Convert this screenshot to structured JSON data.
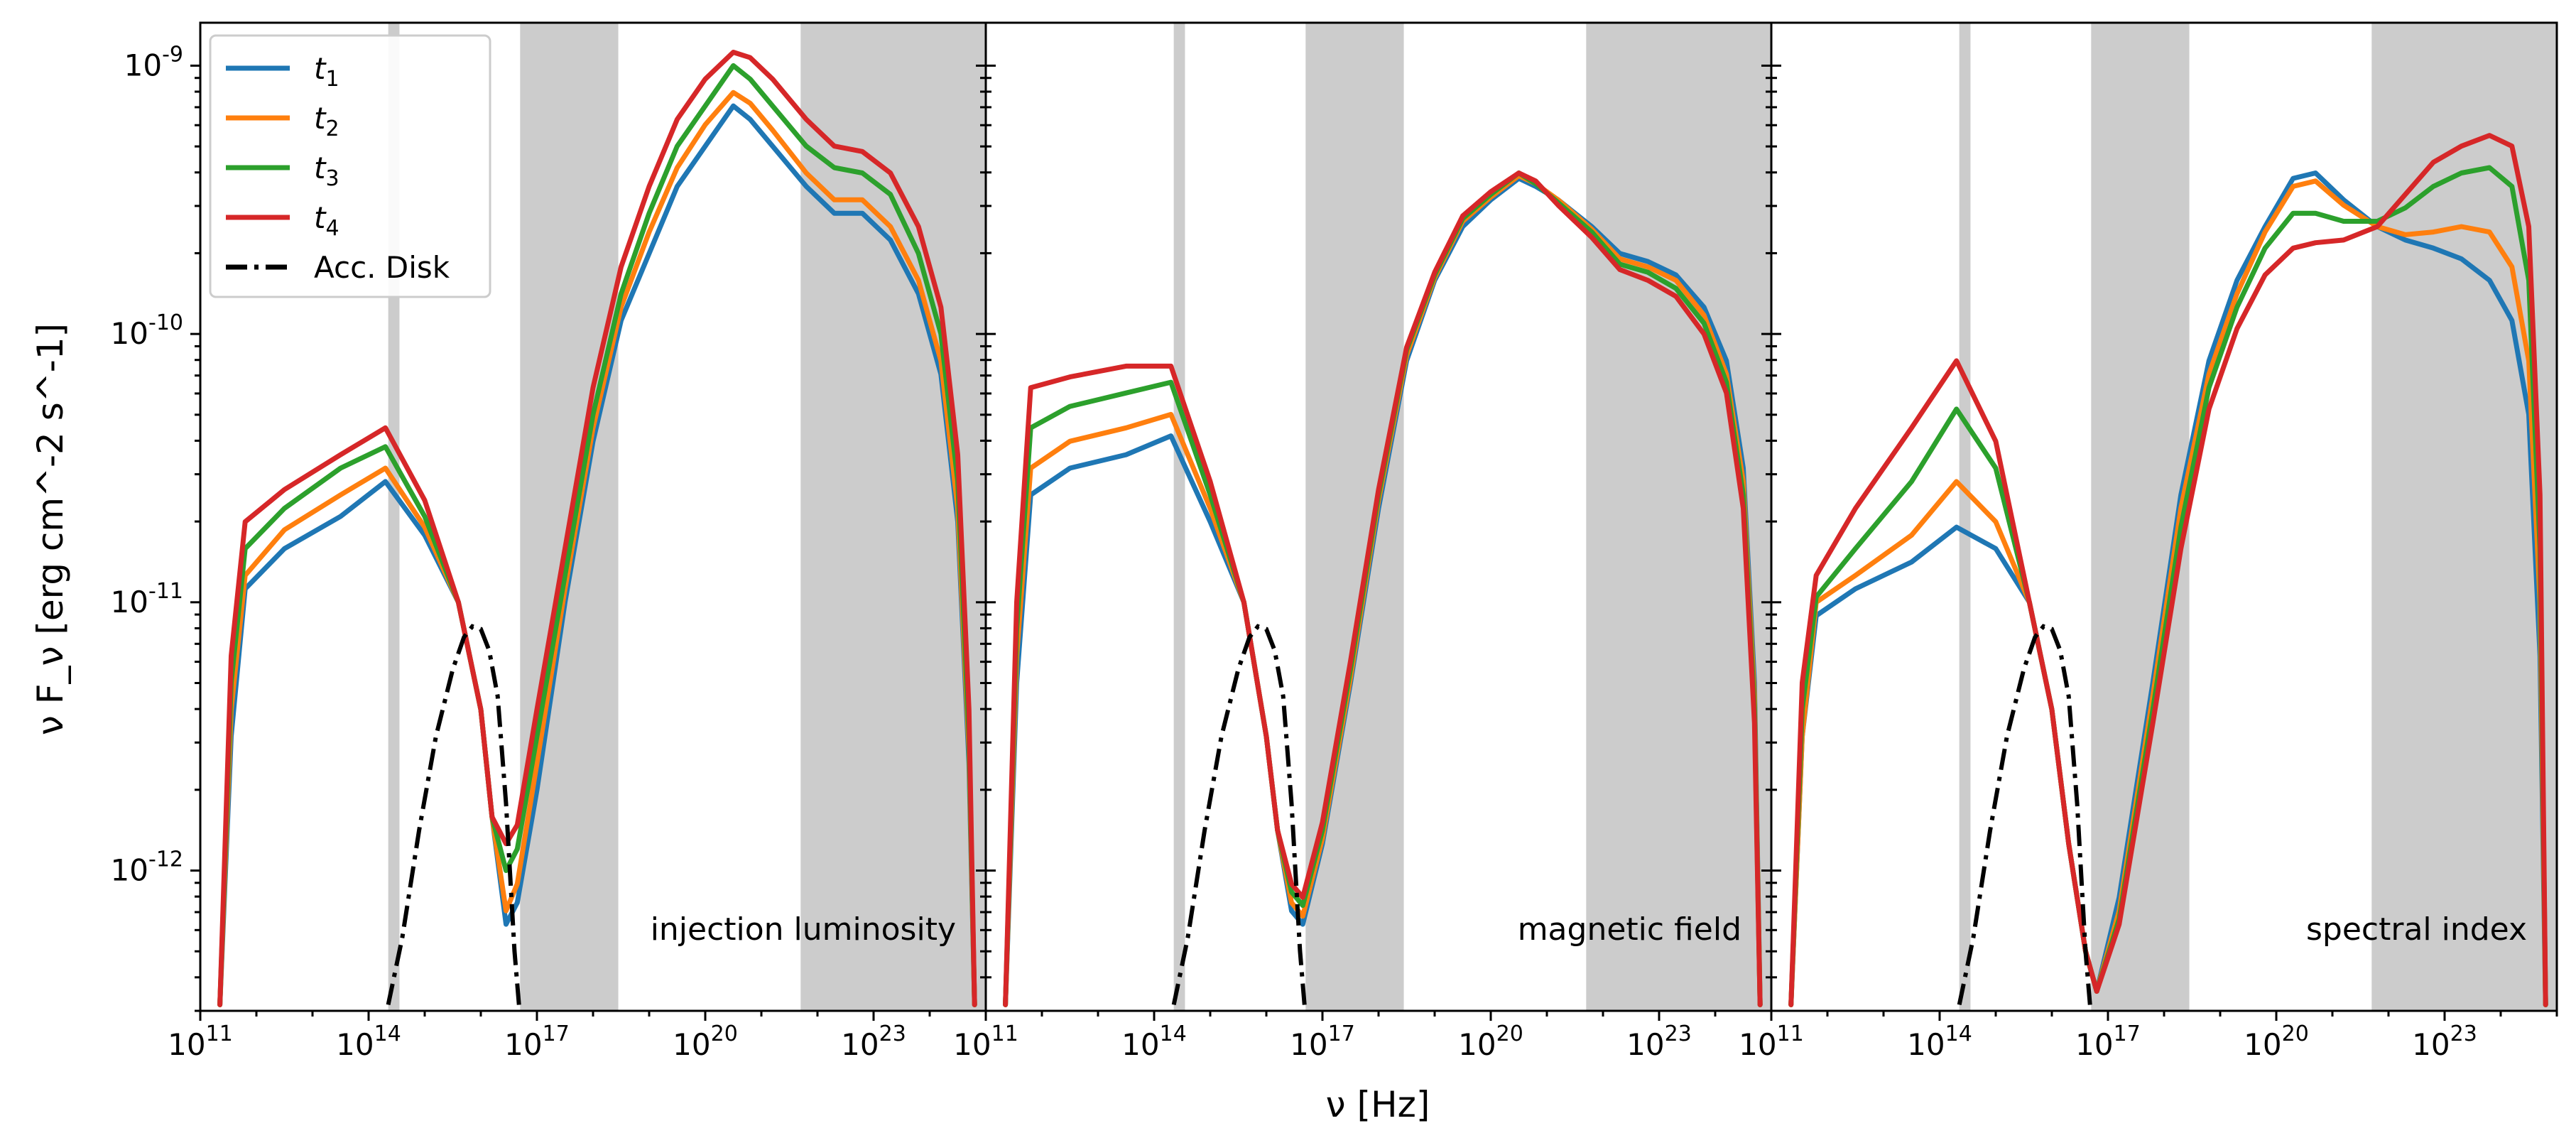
{
  "chart_data": {
    "type": "line",
    "x_scale": "log",
    "y_scale": "log",
    "xlim": [
      100000000000.0,
      1e+25
    ],
    "ylim": [
      3e-13,
      1.6e-09
    ],
    "xlabel": "ν [Hz]",
    "ylabel": "ν F_ν [erg cm^-2 s^-1]",
    "x_ticks": [
      "10^11",
      "10^14",
      "10^17",
      "10^20",
      "10^23"
    ],
    "y_ticks": [
      "10^-12",
      "10^-11",
      "10^-10",
      "10^-9"
    ],
    "shaded_bands_log_nu": [
      [
        14.35,
        14.55
      ],
      [
        16.7,
        18.45
      ],
      [
        21.7,
        25.0
      ]
    ],
    "legend": {
      "position": "upper-left",
      "entries": [
        {
          "label": "t",
          "sub": "1",
          "color": "#1f77b4",
          "style": "solid"
        },
        {
          "label": "t",
          "sub": "2",
          "color": "#ff7f0e",
          "style": "solid"
        },
        {
          "label": "t",
          "sub": "3",
          "color": "#2ca02c",
          "style": "solid"
        },
        {
          "label": "t",
          "sub": "4",
          "color": "#d62728",
          "style": "solid"
        },
        {
          "label": "Acc. Disk",
          "sub": "",
          "color": "#000000",
          "style": "dashdot"
        }
      ]
    },
    "accretion_disk": {
      "log_nu": [
        14.35,
        14.6,
        14.9,
        15.2,
        15.5,
        15.7,
        15.85,
        16.0,
        16.15,
        16.3,
        16.45,
        16.6,
        16.7
      ],
      "log_flux": [
        -12.5,
        -12.25,
        -11.85,
        -11.5,
        -11.25,
        -11.13,
        -11.09,
        -11.1,
        -11.18,
        -11.35,
        -11.75,
        -12.3,
        -12.55
      ]
    },
    "panels": [
      {
        "label": "injection luminosity",
        "series": [
          {
            "name": "t1",
            "color": "#1f77b4",
            "log_nu": [
              11.35,
              11.55,
              11.8,
              12.5,
              13.5,
              14.3,
              15.0,
              15.6,
              16.0,
              16.2,
              16.45,
              16.65,
              17.0,
              17.5,
              18.0,
              18.5,
              19.0,
              19.5,
              20.0,
              20.5,
              20.8,
              21.2,
              21.8,
              22.3,
              22.8,
              23.3,
              23.8,
              24.2,
              24.5,
              24.7,
              24.8
            ],
            "log_flux": [
              -12.5,
              -11.5,
              -10.95,
              -10.8,
              -10.68,
              -10.55,
              -10.75,
              -11.0,
              -11.4,
              -11.8,
              -12.2,
              -12.12,
              -11.7,
              -11.0,
              -10.4,
              -9.95,
              -9.7,
              -9.45,
              -9.3,
              -9.15,
              -9.2,
              -9.3,
              -9.45,
              -9.55,
              -9.55,
              -9.65,
              -9.85,
              -10.15,
              -10.7,
              -11.6,
              -12.5
            ]
          },
          {
            "name": "t2",
            "color": "#ff7f0e",
            "log_nu": [
              11.35,
              11.55,
              11.8,
              12.5,
              13.5,
              14.3,
              15.0,
              15.6,
              16.0,
              16.2,
              16.45,
              16.65,
              17.0,
              17.5,
              18.0,
              18.5,
              19.0,
              19.5,
              20.0,
              20.5,
              20.8,
              21.2,
              21.8,
              22.3,
              22.8,
              23.3,
              23.8,
              24.2,
              24.5,
              24.7,
              24.8
            ],
            "log_flux": [
              -12.5,
              -11.4,
              -10.9,
              -10.73,
              -10.6,
              -10.5,
              -10.72,
              -11.0,
              -11.4,
              -11.8,
              -12.15,
              -12.05,
              -11.6,
              -10.95,
              -10.35,
              -9.9,
              -9.62,
              -9.38,
              -9.22,
              -9.1,
              -9.14,
              -9.24,
              -9.4,
              -9.5,
              -9.5,
              -9.6,
              -9.8,
              -10.1,
              -10.65,
              -11.55,
              -12.5
            ]
          },
          {
            "name": "t3",
            "color": "#2ca02c",
            "log_nu": [
              11.35,
              11.55,
              11.8,
              12.5,
              13.5,
              14.3,
              15.0,
              15.6,
              16.0,
              16.2,
              16.45,
              16.65,
              17.0,
              17.5,
              18.0,
              18.5,
              19.0,
              19.5,
              20.0,
              20.5,
              20.8,
              21.2,
              21.8,
              22.3,
              22.8,
              23.3,
              23.8,
              24.2,
              24.5,
              24.7,
              24.8
            ],
            "log_flux": [
              -12.5,
              -11.3,
              -10.8,
              -10.65,
              -10.5,
              -10.42,
              -10.68,
              -11.0,
              -11.4,
              -11.8,
              -12.0,
              -11.92,
              -11.5,
              -10.9,
              -10.3,
              -9.85,
              -9.55,
              -9.3,
              -9.15,
              -9.0,
              -9.05,
              -9.15,
              -9.3,
              -9.38,
              -9.4,
              -9.48,
              -9.7,
              -10.0,
              -10.55,
              -11.5,
              -12.5
            ]
          },
          {
            "name": "t4",
            "color": "#d62728",
            "log_nu": [
              11.35,
              11.55,
              11.8,
              12.5,
              13.5,
              14.3,
              15.0,
              15.6,
              16.0,
              16.2,
              16.45,
              16.65,
              17.0,
              17.5,
              18.0,
              18.5,
              19.0,
              19.5,
              20.0,
              20.5,
              20.8,
              21.2,
              21.8,
              22.3,
              22.8,
              23.3,
              23.8,
              24.2,
              24.5,
              24.7,
              24.8
            ],
            "log_flux": [
              -12.5,
              -11.2,
              -10.7,
              -10.58,
              -10.45,
              -10.35,
              -10.62,
              -11.0,
              -11.4,
              -11.8,
              -11.9,
              -11.83,
              -11.4,
              -10.8,
              -10.2,
              -9.75,
              -9.45,
              -9.2,
              -9.05,
              -8.95,
              -8.97,
              -9.05,
              -9.2,
              -9.3,
              -9.32,
              -9.4,
              -9.6,
              -9.9,
              -10.45,
              -11.4,
              -12.5
            ]
          }
        ]
      },
      {
        "label": "magnetic field",
        "series": [
          {
            "name": "t1",
            "color": "#1f77b4",
            "log_nu": [
              11.35,
              11.55,
              11.8,
              12.5,
              13.5,
              14.3,
              15.0,
              15.6,
              16.0,
              16.2,
              16.45,
              16.65,
              17.0,
              17.5,
              18.0,
              18.5,
              19.0,
              19.5,
              20.0,
              20.5,
              20.8,
              21.2,
              21.8,
              22.3,
              22.8,
              23.3,
              23.8,
              24.2,
              24.5,
              24.7,
              24.8
            ],
            "log_flux": [
              -12.5,
              -11.3,
              -10.6,
              -10.5,
              -10.45,
              -10.38,
              -10.7,
              -11.0,
              -11.5,
              -11.85,
              -12.15,
              -12.2,
              -11.9,
              -11.3,
              -10.65,
              -10.1,
              -9.8,
              -9.6,
              -9.5,
              -9.42,
              -9.45,
              -9.5,
              -9.6,
              -9.7,
              -9.73,
              -9.78,
              -9.9,
              -10.1,
              -10.5,
              -11.3,
              -12.5
            ]
          },
          {
            "name": "t2",
            "color": "#ff7f0e",
            "log_nu": [
              11.35,
              11.55,
              11.8,
              12.5,
              13.5,
              14.3,
              15.0,
              15.6,
              16.0,
              16.2,
              16.45,
              16.65,
              17.0,
              17.5,
              18.0,
              18.5,
              19.0,
              19.5,
              20.0,
              20.5,
              20.8,
              21.2,
              21.8,
              22.3,
              22.8,
              23.3,
              23.8,
              24.2,
              24.5,
              24.7,
              24.8
            ],
            "log_flux": [
              -12.5,
              -11.2,
              -10.5,
              -10.4,
              -10.35,
              -10.3,
              -10.65,
              -11.0,
              -11.5,
              -11.85,
              -12.12,
              -12.17,
              -11.88,
              -11.28,
              -10.62,
              -10.08,
              -9.79,
              -9.58,
              -9.49,
              -9.41,
              -9.44,
              -9.5,
              -9.61,
              -9.72,
              -9.75,
              -9.8,
              -9.93,
              -10.15,
              -10.55,
              -11.35,
              -12.5
            ]
          },
          {
            "name": "t3",
            "color": "#2ca02c",
            "log_nu": [
              11.35,
              11.55,
              11.8,
              12.5,
              13.5,
              14.3,
              15.0,
              15.6,
              16.0,
              16.2,
              16.45,
              16.65,
              17.0,
              17.5,
              18.0,
              18.5,
              19.0,
              19.5,
              20.0,
              20.5,
              20.8,
              21.2,
              21.8,
              22.3,
              22.8,
              23.3,
              23.8,
              24.2,
              24.5,
              24.7,
              24.8
            ],
            "log_flux": [
              -12.5,
              -11.1,
              -10.35,
              -10.27,
              -10.22,
              -10.18,
              -10.6,
              -11.0,
              -11.5,
              -11.85,
              -12.08,
              -12.13,
              -11.85,
              -11.25,
              -10.6,
              -10.06,
              -9.78,
              -9.57,
              -9.48,
              -9.4,
              -9.44,
              -9.51,
              -9.62,
              -9.74,
              -9.77,
              -9.83,
              -9.96,
              -10.18,
              -10.6,
              -11.4,
              -12.5
            ]
          },
          {
            "name": "t4",
            "color": "#d62728",
            "log_nu": [
              11.35,
              11.55,
              11.8,
              12.5,
              13.5,
              14.3,
              15.0,
              15.6,
              16.0,
              16.2,
              16.45,
              16.65,
              17.0,
              17.5,
              18.0,
              18.5,
              19.0,
              19.5,
              20.0,
              20.5,
              20.8,
              21.2,
              21.8,
              22.3,
              22.8,
              23.3,
              23.8,
              24.2,
              24.5,
              24.7,
              24.8
            ],
            "log_flux": [
              -12.5,
              -11.0,
              -10.2,
              -10.16,
              -10.12,
              -10.12,
              -10.55,
              -11.0,
              -11.5,
              -11.85,
              -12.05,
              -12.1,
              -11.82,
              -11.22,
              -10.58,
              -10.05,
              -9.77,
              -9.56,
              -9.47,
              -9.4,
              -9.43,
              -9.52,
              -9.64,
              -9.76,
              -9.8,
              -9.86,
              -10.0,
              -10.22,
              -10.65,
              -11.45,
              -12.5
            ]
          }
        ]
      },
      {
        "label": "spectral index",
        "series": [
          {
            "name": "t1",
            "color": "#1f77b4",
            "log_nu": [
              11.35,
              11.55,
              11.8,
              12.5,
              13.5,
              14.3,
              15.0,
              15.6,
              16.0,
              16.3,
              16.6,
              16.8,
              17.2,
              17.8,
              18.3,
              18.8,
              19.3,
              19.8,
              20.3,
              20.7,
              21.2,
              21.8,
              22.3,
              22.8,
              23.3,
              23.8,
              24.2,
              24.5,
              24.7,
              24.8
            ],
            "log_flux": [
              -12.5,
              -11.5,
              -11.05,
              -10.95,
              -10.85,
              -10.72,
              -10.8,
              -11.0,
              -11.4,
              -11.9,
              -12.3,
              -12.45,
              -12.1,
              -11.3,
              -10.6,
              -10.1,
              -9.8,
              -9.6,
              -9.42,
              -9.4,
              -9.5,
              -9.6,
              -9.65,
              -9.68,
              -9.72,
              -9.8,
              -9.95,
              -10.3,
              -11.2,
              -12.5
            ]
          },
          {
            "name": "t2",
            "color": "#ff7f0e",
            "log_nu": [
              11.35,
              11.55,
              11.8,
              12.5,
              13.5,
              14.3,
              15.0,
              15.6,
              16.0,
              16.3,
              16.6,
              16.8,
              17.2,
              17.8,
              18.3,
              18.8,
              19.3,
              19.8,
              20.3,
              20.7,
              21.2,
              21.8,
              22.3,
              22.8,
              23.3,
              23.8,
              24.2,
              24.5,
              24.7,
              24.8
            ],
            "log_flux": [
              -12.5,
              -11.5,
              -11.0,
              -10.9,
              -10.75,
              -10.55,
              -10.7,
              -11.0,
              -11.4,
              -11.9,
              -12.3,
              -12.45,
              -12.15,
              -11.35,
              -10.65,
              -10.15,
              -9.85,
              -9.62,
              -9.45,
              -9.43,
              -9.52,
              -9.6,
              -9.63,
              -9.62,
              -9.6,
              -9.62,
              -9.75,
              -10.1,
              -11.0,
              -12.5
            ]
          },
          {
            "name": "t3",
            "color": "#2ca02c",
            "log_nu": [
              11.35,
              11.55,
              11.8,
              12.5,
              13.5,
              14.3,
              15.0,
              15.6,
              16.0,
              16.3,
              16.6,
              16.8,
              17.2,
              17.8,
              18.3,
              18.8,
              19.3,
              19.8,
              20.3,
              20.7,
              21.2,
              21.8,
              22.3,
              22.8,
              23.3,
              23.8,
              24.2,
              24.5,
              24.7,
              24.8
            ],
            "log_flux": [
              -12.5,
              -11.4,
              -10.98,
              -10.8,
              -10.55,
              -10.28,
              -10.5,
              -11.0,
              -11.4,
              -11.9,
              -12.3,
              -12.45,
              -12.18,
              -11.4,
              -10.72,
              -10.2,
              -9.9,
              -9.68,
              -9.55,
              -9.55,
              -9.58,
              -9.58,
              -9.53,
              -9.45,
              -9.4,
              -9.38,
              -9.45,
              -9.8,
              -10.8,
              -12.5
            ]
          },
          {
            "name": "t4",
            "color": "#d62728",
            "log_nu": [
              11.35,
              11.55,
              11.8,
              12.5,
              13.5,
              14.3,
              15.0,
              15.6,
              16.0,
              16.3,
              16.6,
              16.8,
              17.2,
              17.8,
              18.3,
              18.8,
              19.3,
              19.8,
              20.3,
              20.7,
              21.2,
              21.8,
              22.3,
              22.8,
              23.3,
              23.8,
              24.2,
              24.5,
              24.7,
              24.8
            ],
            "log_flux": [
              -12.5,
              -11.3,
              -10.9,
              -10.65,
              -10.35,
              -10.1,
              -10.4,
              -11.0,
              -11.4,
              -11.9,
              -12.3,
              -12.45,
              -12.2,
              -11.45,
              -10.8,
              -10.28,
              -9.98,
              -9.78,
              -9.68,
              -9.66,
              -9.65,
              -9.6,
              -9.48,
              -9.36,
              -9.3,
              -9.26,
              -9.3,
              -9.6,
              -10.6,
              -12.5
            ]
          }
        ]
      }
    ]
  }
}
